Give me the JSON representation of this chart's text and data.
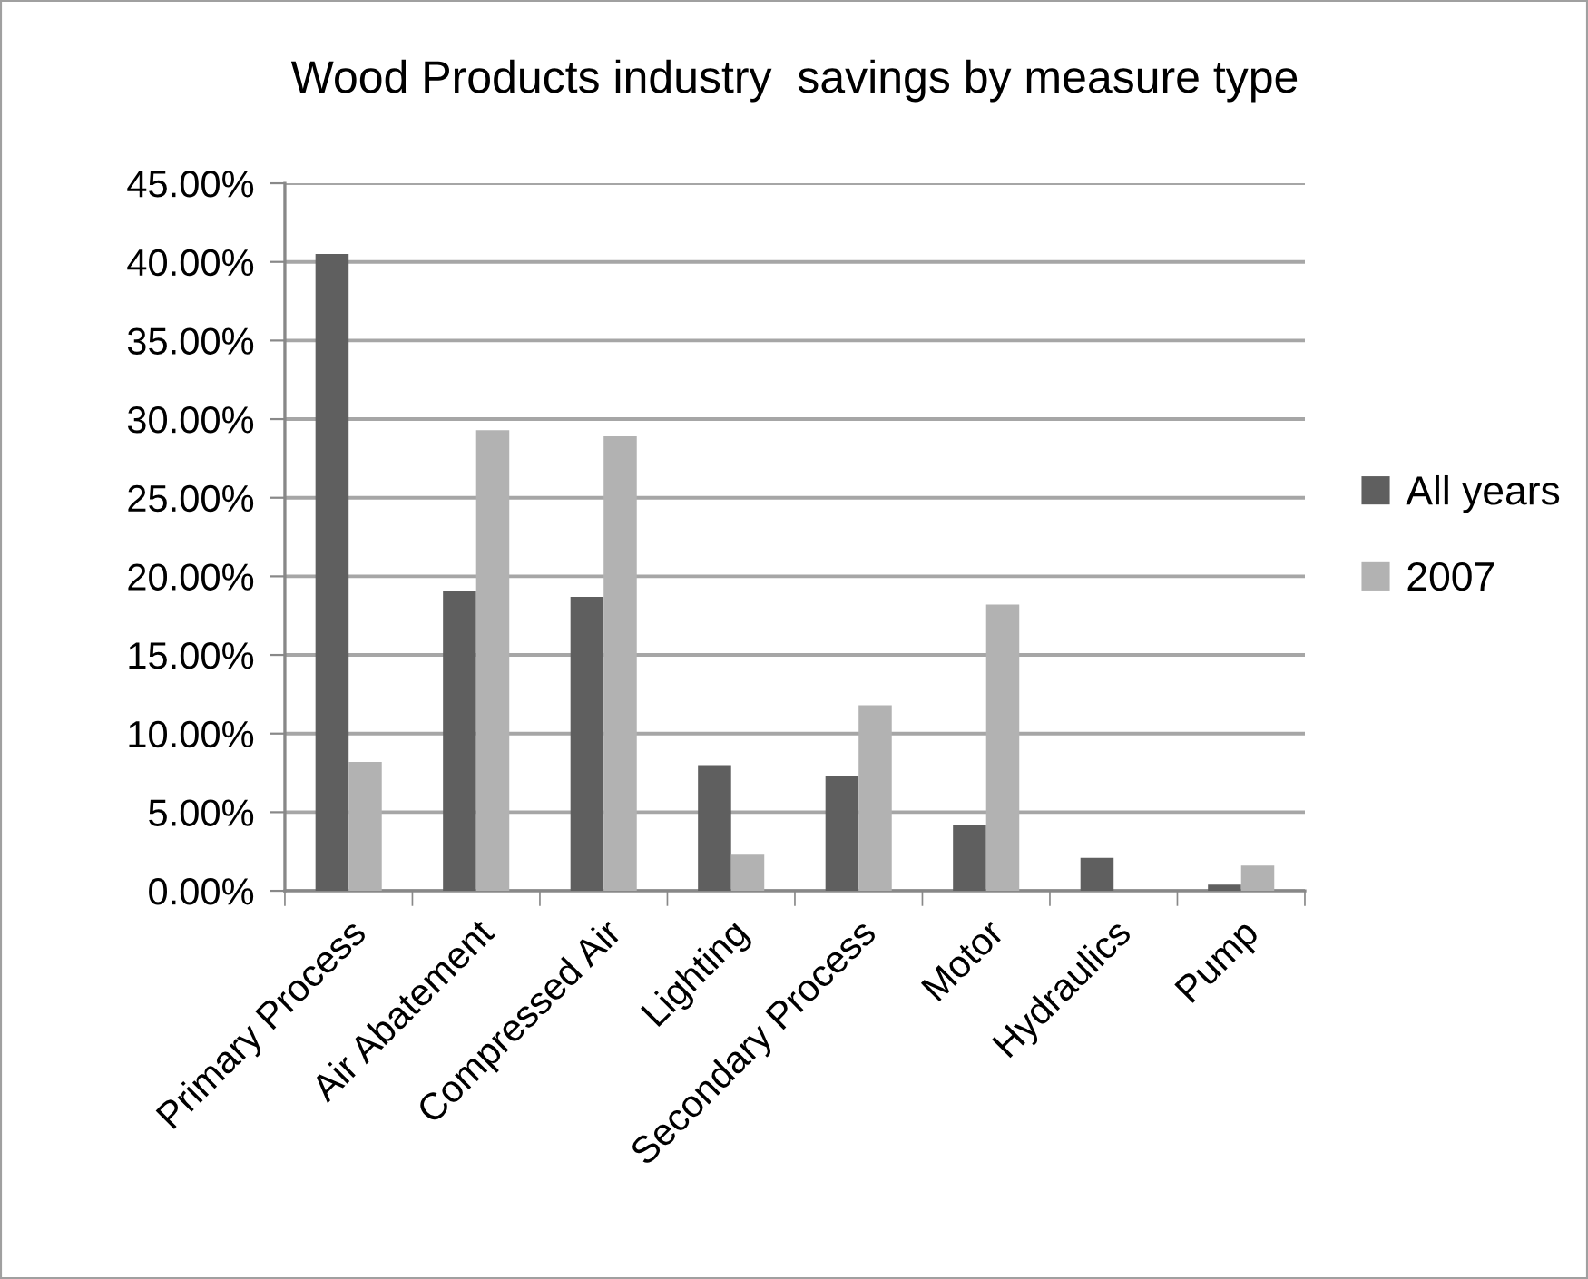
{
  "chart_data": {
    "type": "bar",
    "title": "Wood Products industry  savings by measure type",
    "categories": [
      "Primary Process",
      "Air Abatement",
      "Compressed Air",
      "Lighting",
      "Secondary Process",
      "Motor",
      "Hydraulics",
      "Pump"
    ],
    "series": [
      {
        "name": "All years",
        "color": "#5f5f5f",
        "values": [
          40.5,
          19.1,
          18.7,
          8.0,
          7.3,
          4.2,
          2.1,
          0.4
        ]
      },
      {
        "name": "2007",
        "color": "#b2b2b2",
        "values": [
          8.2,
          29.3,
          28.9,
          2.3,
          11.8,
          18.2,
          null,
          1.6
        ]
      }
    ],
    "ylim": [
      0,
      45
    ],
    "yticks": [
      {
        "value": 0,
        "label": "0.00%"
      },
      {
        "value": 5,
        "label": "5.00%"
      },
      {
        "value": 10,
        "label": "10.00%"
      },
      {
        "value": 15,
        "label": "15.00%"
      },
      {
        "value": 20,
        "label": "20.00%"
      },
      {
        "value": 25,
        "label": "25.00%"
      },
      {
        "value": 30,
        "label": "30.00%"
      },
      {
        "value": 35,
        "label": "35.00%"
      },
      {
        "value": 40,
        "label": "40.00%"
      },
      {
        "value": 45,
        "label": "45.00%"
      }
    ],
    "grid": "y",
    "legend": "right"
  }
}
